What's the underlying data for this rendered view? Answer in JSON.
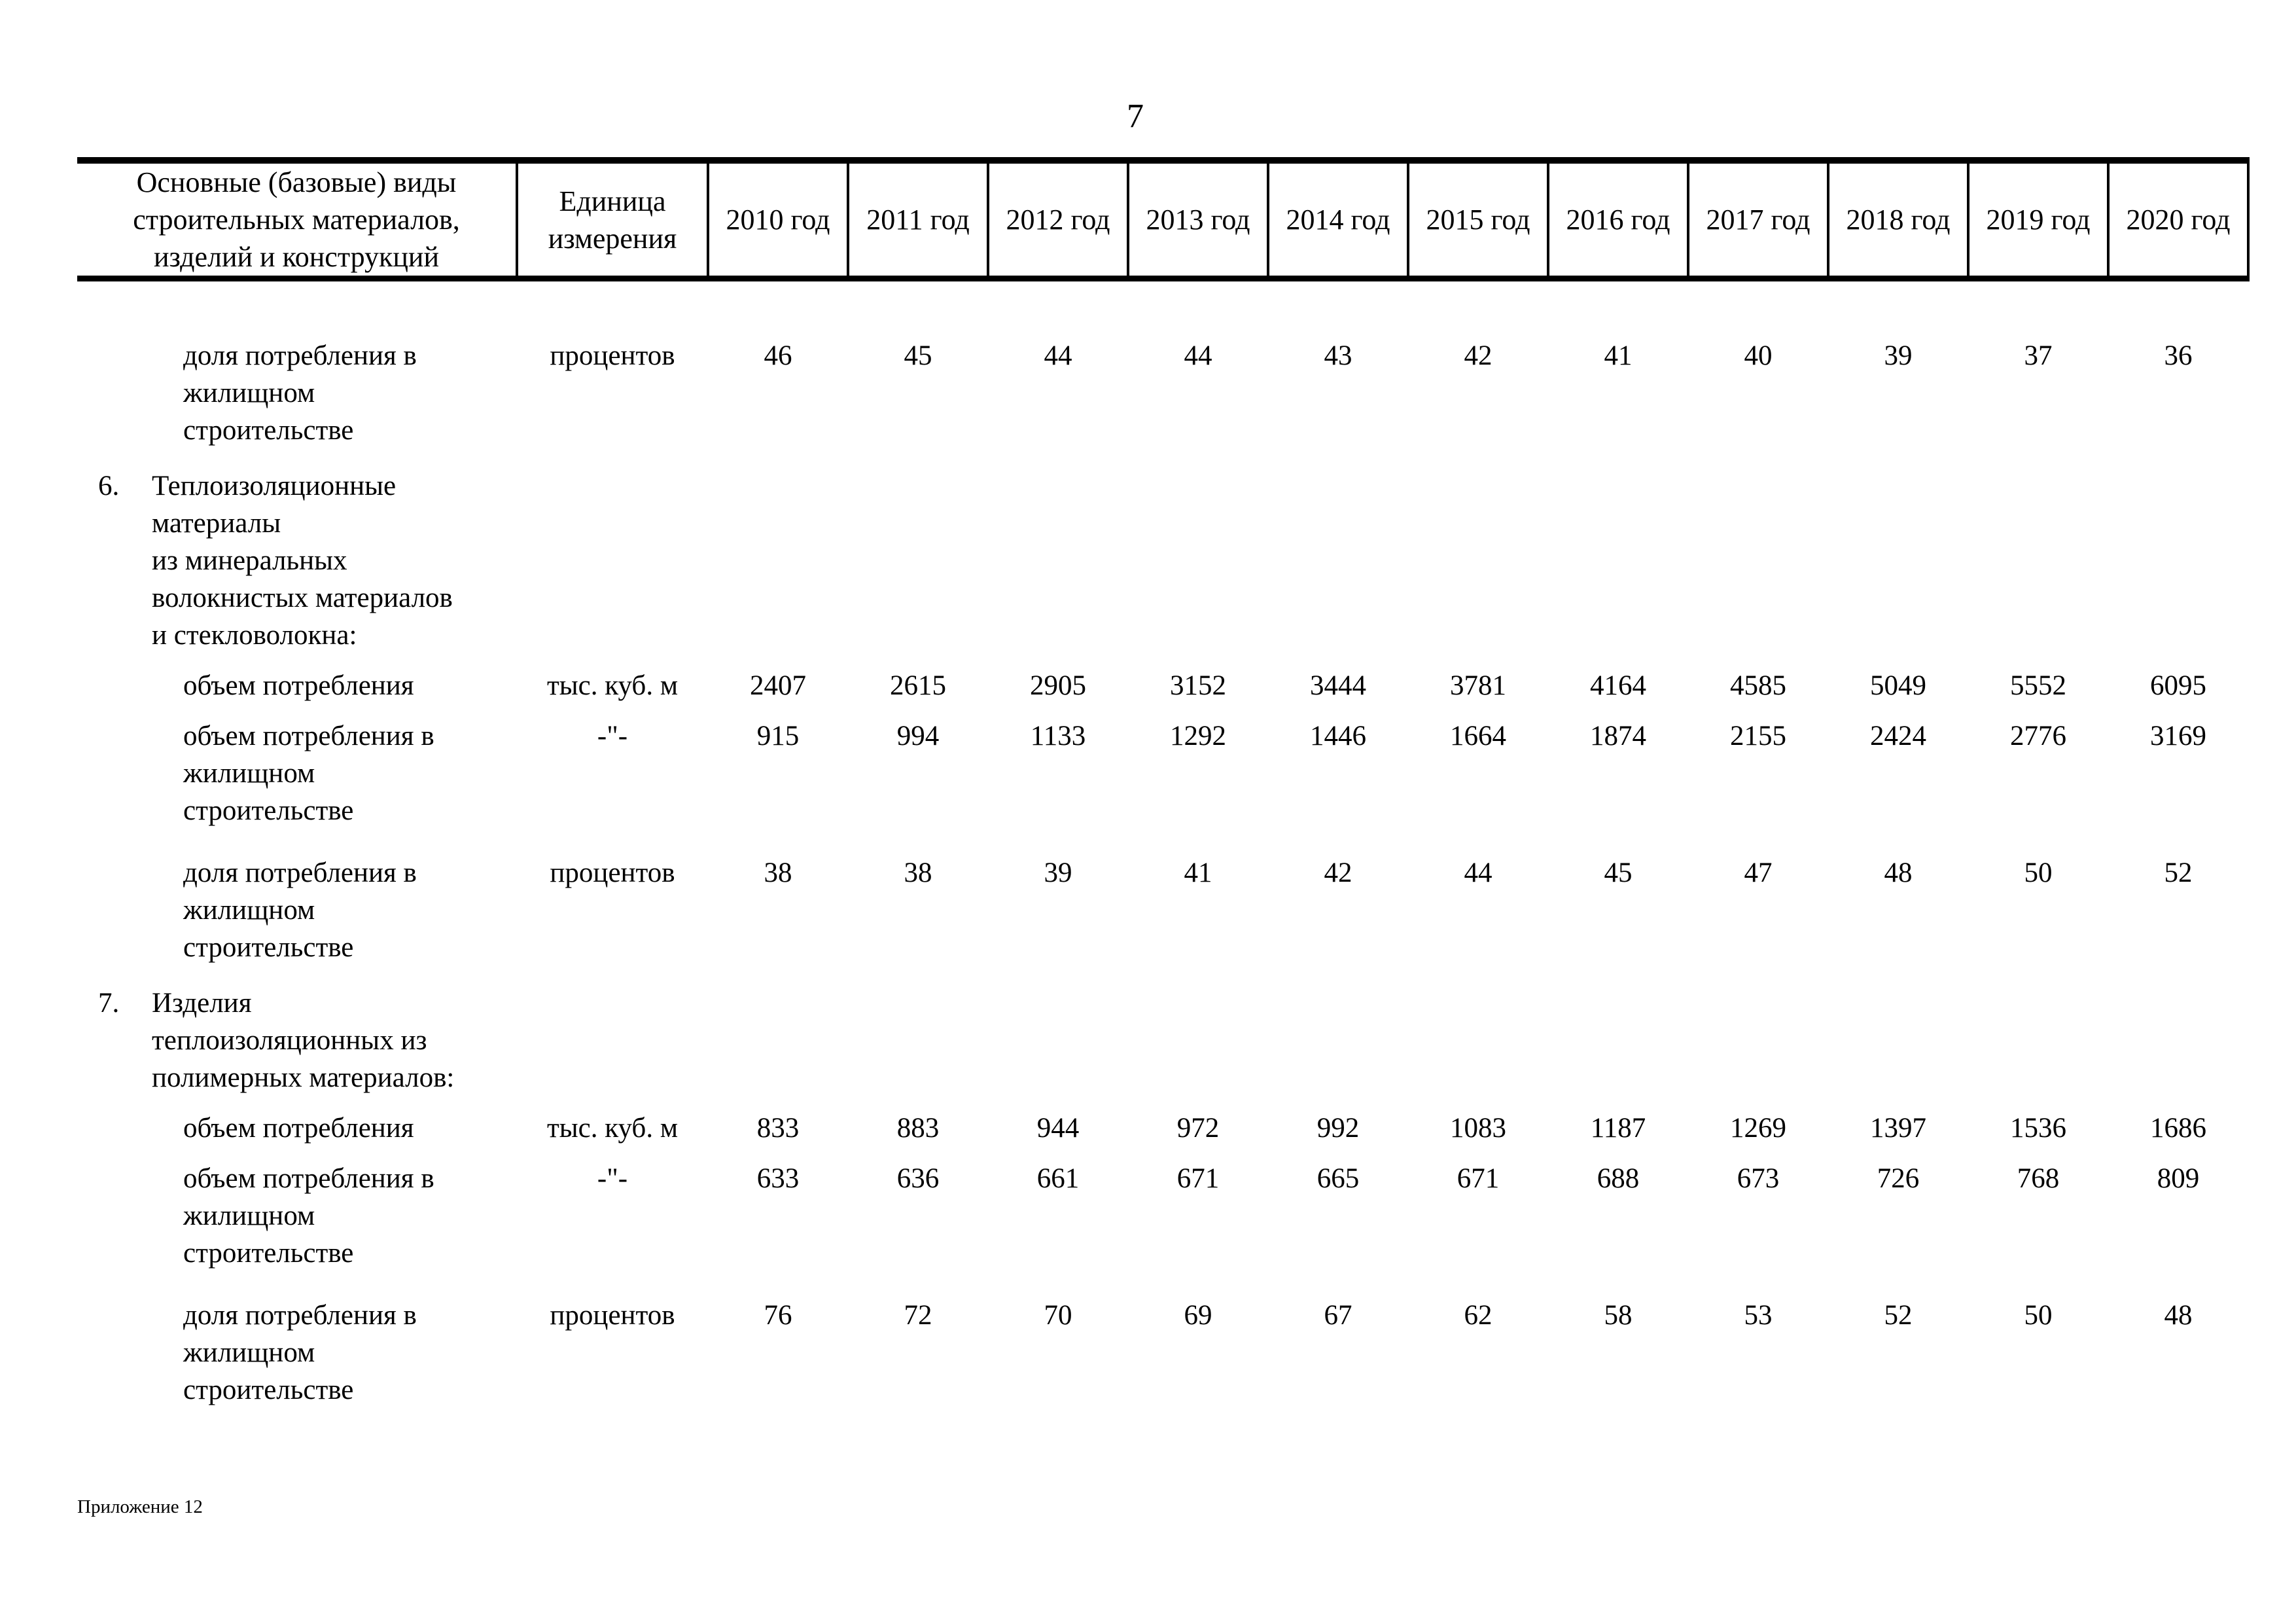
{
  "page": {
    "number": "7",
    "footer": "Приложение 12"
  },
  "table": {
    "header": {
      "name_lines": [
        "Основные (базовые) виды",
        "строительных материалов,",
        "изделий и конструкций"
      ],
      "unit_lines": [
        "Единица",
        "измерения"
      ],
      "years": [
        "2010 год",
        "2011 год",
        "2012 год",
        "2013 год",
        "2014 год",
        "2015 год",
        "2016 год",
        "2017 год",
        "2018 год",
        "2019 год",
        "2020 год"
      ]
    },
    "rows": [
      {
        "kind": "data",
        "label_lines": [
          "доля потребления в",
          "жилищном",
          "строительстве"
        ],
        "unit": "процентов",
        "values": [
          "46",
          "45",
          "44",
          "44",
          "43",
          "42",
          "41",
          "40",
          "39",
          "37",
          "36"
        ]
      },
      {
        "kind": "section",
        "number": "6.",
        "label_lines": [
          "Теплоизоляционные",
          "материалы",
          "из минеральных",
          "волокнистых материалов",
          "и стекловолокна:"
        ],
        "unit": "",
        "values": []
      },
      {
        "kind": "data",
        "label_lines": [
          "объем потребления"
        ],
        "unit": "тыс. куб. м",
        "values": [
          "2407",
          "2615",
          "2905",
          "3152",
          "3444",
          "3781",
          "4164",
          "4585",
          "5049",
          "5552",
          "6095"
        ]
      },
      {
        "kind": "data",
        "label_lines": [
          "объем потребления в",
          "жилищном",
          "строительстве"
        ],
        "unit": "-\"-",
        "values": [
          "915",
          "994",
          "1133",
          "1292",
          "1446",
          "1664",
          "1874",
          "2155",
          "2424",
          "2776",
          "3169"
        ]
      },
      {
        "kind": "data",
        "label_lines": [
          "доля потребления в",
          "жилищном",
          "строительстве"
        ],
        "unit": "процентов",
        "values": [
          "38",
          "38",
          "39",
          "41",
          "42",
          "44",
          "45",
          "47",
          "48",
          "50",
          "52"
        ]
      },
      {
        "kind": "section",
        "number": "7.",
        "label_lines": [
          "Изделия",
          "теплоизоляционных из",
          "полимерных материалов:"
        ],
        "unit": "",
        "values": []
      },
      {
        "kind": "data",
        "label_lines": [
          "объем потребления"
        ],
        "unit": "тыс. куб. м",
        "values": [
          "833",
          "883",
          "944",
          "972",
          "992",
          "1083",
          "1187",
          "1269",
          "1397",
          "1536",
          "1686"
        ]
      },
      {
        "kind": "data",
        "label_lines": [
          "объем потребления в",
          "жилищном",
          "строительстве"
        ],
        "unit": "-\"-",
        "values": [
          "633",
          "636",
          "661",
          "671",
          "665",
          "671",
          "688",
          "673",
          "726",
          "768",
          "809"
        ]
      },
      {
        "kind": "data",
        "label_lines": [
          "доля потребления в",
          "жилищном",
          "строительстве"
        ],
        "unit": "процентов",
        "values": [
          "76",
          "72",
          "70",
          "69",
          "67",
          "62",
          "58",
          "53",
          "52",
          "50",
          "48"
        ]
      }
    ]
  }
}
